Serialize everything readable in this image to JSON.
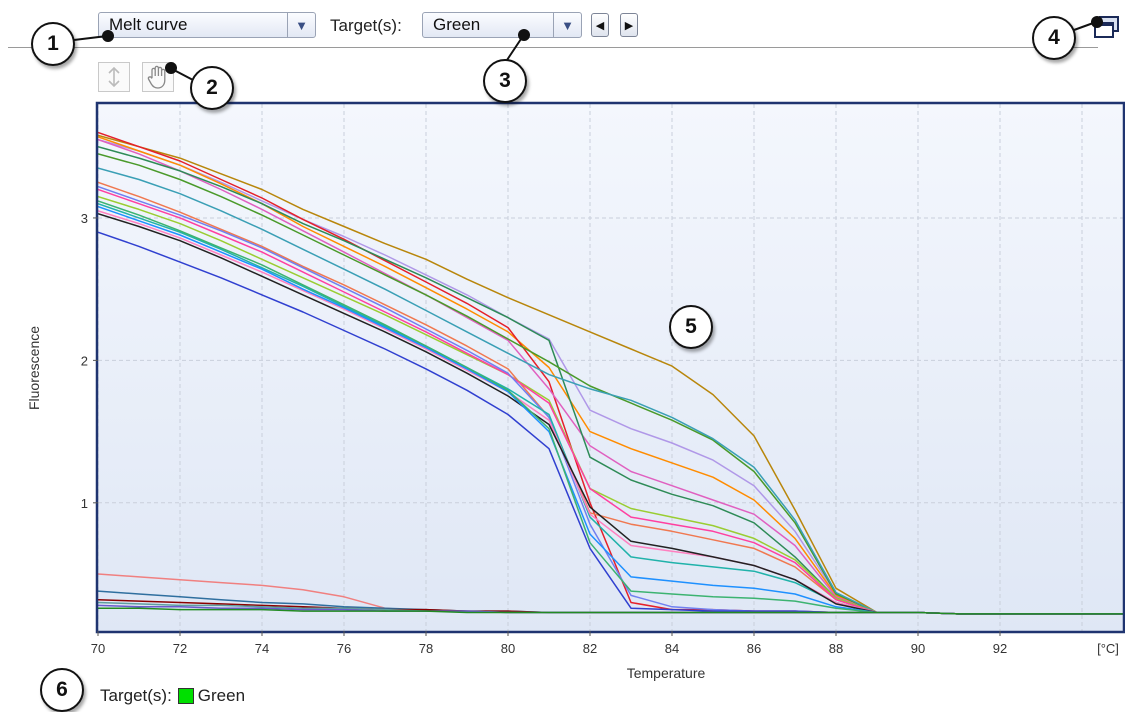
{
  "toolbar": {
    "view_select": "Melt curve",
    "targets_label": "Target(s):",
    "target_select": "Green"
  },
  "legend": {
    "label": "Target(s):",
    "target": "Green",
    "color": "#00e000"
  },
  "callouts": [
    "1",
    "2",
    "3",
    "4",
    "5",
    "6"
  ],
  "chart_data": {
    "type": "line",
    "xlabel": "Temperature",
    "ylabel": "Fluorescence",
    "x_unit_label": "[°C]",
    "xlim": [
      70,
      95
    ],
    "ylim": [
      0.1,
      3.8
    ],
    "x_ticks": [
      70,
      72,
      74,
      76,
      78,
      80,
      82,
      84,
      86,
      88,
      90,
      92
    ],
    "y_ticks": [
      1,
      2,
      3
    ],
    "grid": true,
    "x": [
      70,
      71,
      72,
      73,
      74,
      75,
      76,
      77,
      78,
      79,
      80,
      81,
      82,
      83,
      84,
      85,
      86,
      87,
      88,
      89,
      90,
      91,
      92,
      93,
      94,
      95
    ],
    "series": [
      {
        "color": "#b8860b",
        "values": [
          3.58,
          3.5,
          3.42,
          3.31,
          3.2,
          3.06,
          2.94,
          2.82,
          2.71,
          2.57,
          2.44,
          2.32,
          2.2,
          2.08,
          1.96,
          1.76,
          1.47,
          0.95,
          0.4,
          0.23,
          0.23,
          0.22,
          0.22,
          0.22,
          0.22,
          0.22
        ]
      },
      {
        "color": "#b098e8",
        "values": [
          3.55,
          3.47,
          3.37,
          3.25,
          3.12,
          2.99,
          2.87,
          2.74,
          2.6,
          2.46,
          2.3,
          2.15,
          1.65,
          1.52,
          1.42,
          1.3,
          1.12,
          0.8,
          0.36,
          0.23,
          0.23,
          0.22,
          0.22,
          0.22,
          0.22,
          0.22
        ]
      },
      {
        "color": "#ff8c00",
        "values": [
          3.57,
          3.47,
          3.37,
          3.24,
          3.1,
          2.94,
          2.8,
          2.66,
          2.51,
          2.36,
          2.2,
          1.95,
          1.5,
          1.38,
          1.28,
          1.18,
          1.02,
          0.75,
          0.35,
          0.23,
          0.23,
          0.22,
          0.22,
          0.22,
          0.22,
          0.22
        ]
      },
      {
        "color": "#e5202a",
        "values": [
          3.6,
          3.5,
          3.4,
          3.27,
          3.14,
          2.99,
          2.85,
          2.7,
          2.55,
          2.4,
          2.23,
          1.85,
          1.0,
          0.3,
          0.25,
          0.25,
          0.24,
          0.24,
          0.23,
          0.23,
          0.23,
          0.22,
          0.22,
          0.22,
          0.22,
          0.22
        ]
      },
      {
        "color": "#e060c0",
        "values": [
          3.55,
          3.45,
          3.33,
          3.2,
          3.06,
          2.91,
          2.76,
          2.61,
          2.46,
          2.3,
          2.14,
          1.8,
          1.4,
          1.22,
          1.12,
          1.02,
          0.92,
          0.7,
          0.34,
          0.23,
          0.23,
          0.22,
          0.22,
          0.22,
          0.22,
          0.22
        ]
      },
      {
        "color": "#2e8b57",
        "values": [
          3.5,
          3.42,
          3.33,
          3.22,
          3.1,
          2.96,
          2.84,
          2.71,
          2.58,
          2.44,
          2.3,
          2.14,
          1.32,
          1.16,
          1.06,
          0.98,
          0.86,
          0.62,
          0.33,
          0.23,
          0.23,
          0.22,
          0.22,
          0.22,
          0.22,
          0.22
        ]
      },
      {
        "color": "#4a9a2a",
        "values": [
          3.45,
          3.37,
          3.27,
          3.15,
          3.02,
          2.88,
          2.74,
          2.6,
          2.46,
          2.31,
          2.15,
          1.99,
          1.82,
          1.7,
          1.58,
          1.44,
          1.22,
          0.86,
          0.36,
          0.23,
          0.23,
          0.22,
          0.22,
          0.22,
          0.22,
          0.22
        ]
      },
      {
        "color": "#3a9fb5",
        "values": [
          3.35,
          3.27,
          3.17,
          3.05,
          2.92,
          2.78,
          2.64,
          2.5,
          2.35,
          2.2,
          2.05,
          1.9,
          1.8,
          1.72,
          1.6,
          1.45,
          1.25,
          0.88,
          0.37,
          0.23,
          0.23,
          0.22,
          0.22,
          0.22,
          0.22,
          0.22
        ]
      },
      {
        "color": "#f07850",
        "values": [
          3.25,
          3.15,
          3.04,
          2.92,
          2.8,
          2.66,
          2.53,
          2.39,
          2.25,
          2.1,
          1.94,
          1.6,
          0.93,
          0.85,
          0.8,
          0.74,
          0.68,
          0.55,
          0.32,
          0.23,
          0.23,
          0.22,
          0.22,
          0.22,
          0.22,
          0.22
        ]
      },
      {
        "color": "#9acd32",
        "values": [
          3.15,
          3.06,
          2.96,
          2.84,
          2.71,
          2.58,
          2.45,
          2.32,
          2.18,
          2.04,
          1.9,
          1.72,
          1.1,
          0.96,
          0.9,
          0.84,
          0.75,
          0.6,
          0.33,
          0.23,
          0.23,
          0.22,
          0.22,
          0.22,
          0.22,
          0.22
        ]
      },
      {
        "color": "#ff40a0",
        "values": [
          3.2,
          3.1,
          3.0,
          2.88,
          2.76,
          2.62,
          2.48,
          2.34,
          2.2,
          2.05,
          1.9,
          1.7,
          1.1,
          0.9,
          0.85,
          0.8,
          0.72,
          0.58,
          0.32,
          0.23,
          0.23,
          0.22,
          0.22,
          0.22,
          0.22,
          0.22
        ]
      },
      {
        "color": "#7080f0",
        "values": [
          3.22,
          3.12,
          3.02,
          2.91,
          2.79,
          2.65,
          2.51,
          2.37,
          2.22,
          2.07,
          1.91,
          1.6,
          0.85,
          0.35,
          0.27,
          0.25,
          0.24,
          0.24,
          0.23,
          0.23,
          0.23,
          0.22,
          0.22,
          0.22,
          0.22,
          0.22
        ]
      },
      {
        "color": "#20b2aa",
        "values": [
          3.1,
          3.0,
          2.9,
          2.78,
          2.65,
          2.52,
          2.38,
          2.24,
          2.1,
          1.95,
          1.8,
          1.62,
          0.9,
          0.62,
          0.58,
          0.55,
          0.52,
          0.44,
          0.3,
          0.23,
          0.23,
          0.22,
          0.22,
          0.22,
          0.22,
          0.22
        ]
      },
      {
        "color": "#ff80c0",
        "values": [
          3.05,
          2.96,
          2.86,
          2.74,
          2.62,
          2.49,
          2.36,
          2.22,
          2.08,
          1.93,
          1.78,
          1.58,
          0.92,
          0.7,
          0.66,
          0.62,
          0.56,
          0.46,
          0.3,
          0.23,
          0.23,
          0.22,
          0.22,
          0.22,
          0.22,
          0.22
        ]
      },
      {
        "color": "#222222",
        "values": [
          3.03,
          2.94,
          2.84,
          2.72,
          2.59,
          2.46,
          2.33,
          2.2,
          2.06,
          1.91,
          1.75,
          1.55,
          0.97,
          0.73,
          0.68,
          0.62,
          0.56,
          0.46,
          0.29,
          0.23,
          0.23,
          0.22,
          0.22,
          0.22,
          0.22,
          0.22
        ]
      },
      {
        "color": "#1e90ff",
        "values": [
          3.08,
          2.98,
          2.88,
          2.76,
          2.64,
          2.5,
          2.37,
          2.23,
          2.09,
          1.94,
          1.78,
          1.5,
          0.78,
          0.48,
          0.45,
          0.42,
          0.4,
          0.36,
          0.27,
          0.23,
          0.23,
          0.22,
          0.22,
          0.22,
          0.22,
          0.22
        ]
      },
      {
        "color": "#3cb371",
        "values": [
          3.12,
          3.02,
          2.91,
          2.79,
          2.67,
          2.53,
          2.39,
          2.25,
          2.1,
          1.95,
          1.79,
          1.52,
          0.72,
          0.38,
          0.36,
          0.34,
          0.33,
          0.31,
          0.26,
          0.23,
          0.23,
          0.22,
          0.22,
          0.22,
          0.22,
          0.22
        ]
      },
      {
        "color": "#3040d0",
        "values": [
          2.9,
          2.8,
          2.69,
          2.58,
          2.46,
          2.34,
          2.21,
          2.08,
          1.94,
          1.79,
          1.62,
          1.38,
          0.68,
          0.26,
          0.25,
          0.24,
          0.24,
          0.24,
          0.23,
          0.23,
          0.23,
          0.22,
          0.22,
          0.22,
          0.22,
          0.22
        ]
      },
      {
        "color": "#f08080",
        "values": [
          0.5,
          0.48,
          0.46,
          0.44,
          0.42,
          0.39,
          0.34,
          0.26,
          0.24,
          0.24,
          0.23,
          0.23,
          0.23,
          0.23,
          0.23,
          0.23,
          0.23,
          0.23,
          0.23,
          0.23,
          0.23,
          0.22,
          0.22,
          0.22,
          0.22,
          0.22
        ]
      },
      {
        "color": "#2f6f9f",
        "values": [
          0.38,
          0.36,
          0.34,
          0.32,
          0.3,
          0.29,
          0.27,
          0.26,
          0.25,
          0.24,
          0.24,
          0.23,
          0.23,
          0.23,
          0.23,
          0.23,
          0.23,
          0.23,
          0.23,
          0.23,
          0.23,
          0.22,
          0.22,
          0.22,
          0.22,
          0.22
        ]
      },
      {
        "color": "#8b0000",
        "values": [
          0.32,
          0.31,
          0.3,
          0.29,
          0.28,
          0.27,
          0.26,
          0.25,
          0.25,
          0.24,
          0.24,
          0.23,
          0.23,
          0.23,
          0.23,
          0.23,
          0.23,
          0.23,
          0.23,
          0.23,
          0.23,
          0.22,
          0.22,
          0.22,
          0.22,
          0.22
        ]
      },
      {
        "color": "#5f9ea0",
        "values": [
          0.3,
          0.29,
          0.28,
          0.28,
          0.27,
          0.26,
          0.26,
          0.25,
          0.24,
          0.24,
          0.23,
          0.23,
          0.23,
          0.23,
          0.23,
          0.23,
          0.23,
          0.23,
          0.23,
          0.23,
          0.23,
          0.22,
          0.22,
          0.22,
          0.22,
          0.22
        ]
      },
      {
        "color": "#6a5acd",
        "values": [
          0.28,
          0.27,
          0.27,
          0.26,
          0.26,
          0.25,
          0.25,
          0.24,
          0.24,
          0.24,
          0.23,
          0.23,
          0.23,
          0.23,
          0.23,
          0.23,
          0.23,
          0.23,
          0.23,
          0.23,
          0.23,
          0.22,
          0.22,
          0.22,
          0.22,
          0.22
        ]
      },
      {
        "color": "#228b22",
        "values": [
          0.26,
          0.26,
          0.25,
          0.25,
          0.25,
          0.24,
          0.24,
          0.24,
          0.24,
          0.23,
          0.23,
          0.23,
          0.23,
          0.23,
          0.23,
          0.23,
          0.23,
          0.23,
          0.23,
          0.23,
          0.23,
          0.22,
          0.22,
          0.22,
          0.22,
          0.22
        ]
      }
    ]
  }
}
